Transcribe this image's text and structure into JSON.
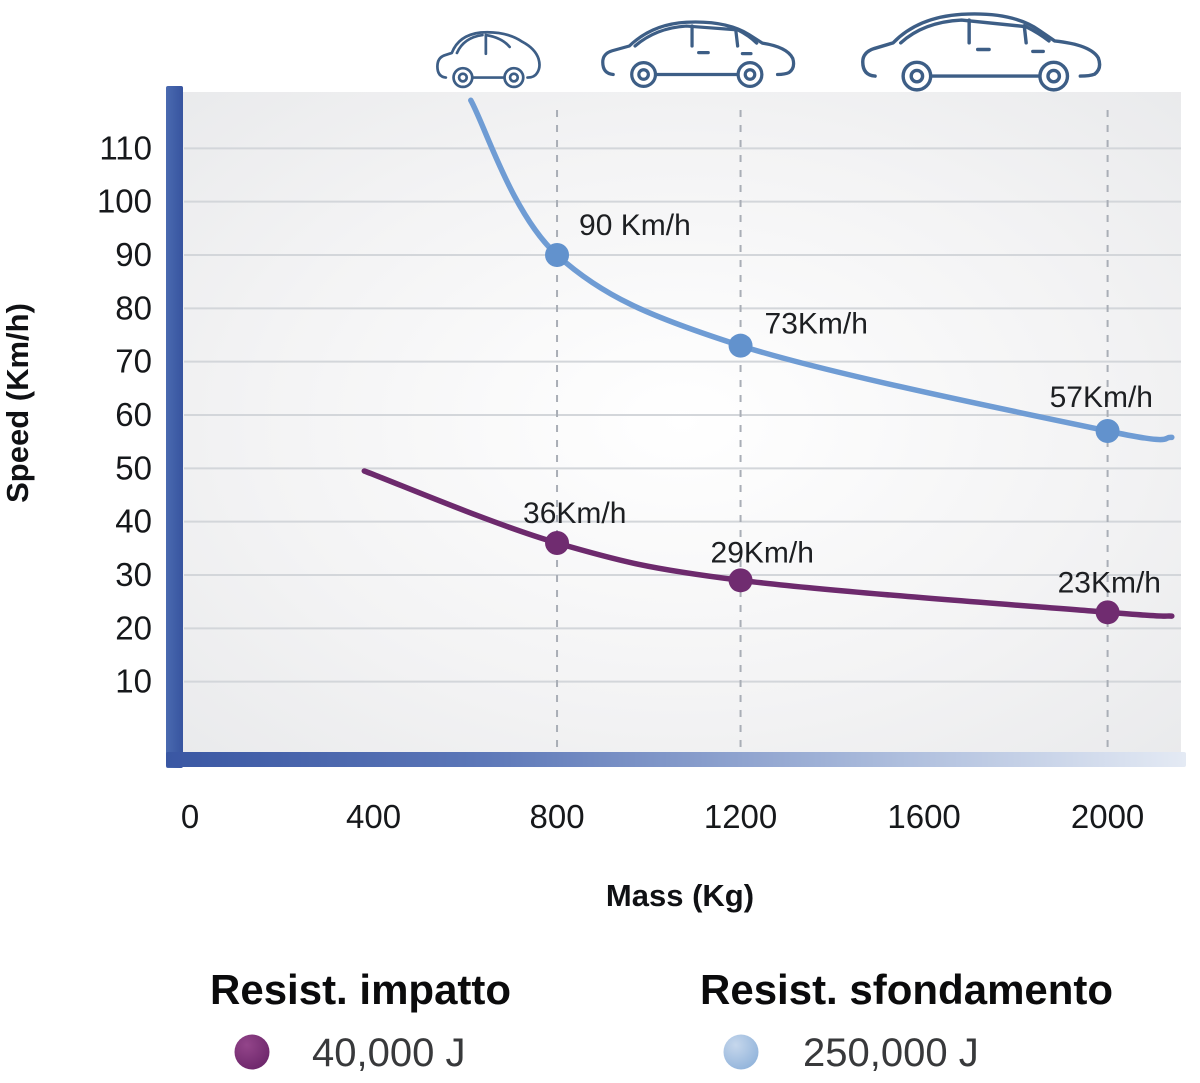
{
  "chart_data": {
    "type": "line",
    "title": "",
    "xlabel": "Mass (Kg)",
    "ylabel": "Speed (Km/h)",
    "x_ticks": [
      0,
      400,
      800,
      1200,
      1600,
      2000
    ],
    "y_ticks": [
      10,
      20,
      30,
      40,
      50,
      60,
      70,
      80,
      90,
      100,
      110
    ],
    "xlim": [
      0,
      2160
    ],
    "ylim": [
      0,
      120
    ],
    "grid": "horizontal",
    "legend_position": "bottom",
    "guide_masses": [
      800,
      1200,
      2000
    ],
    "series": [
      {
        "id": "impact",
        "name": "Resist. impatto",
        "energy_label": "40,000 J",
        "color": "#6d2a6d",
        "dot_color": "#702c70",
        "legend_dot_color": "#7b2e74",
        "points": [
          {
            "mass": 800,
            "speed": 36,
            "label": "36Km/h"
          },
          {
            "mass": 1200,
            "speed": 29,
            "label": "29Km/h"
          },
          {
            "mass": 2000,
            "speed": 23,
            "label": "23Km/h"
          }
        ],
        "curve": [
          [
            380,
            49.5
          ],
          [
            800,
            36
          ],
          [
            1200,
            29
          ],
          [
            2000,
            23
          ],
          [
            2140,
            22.3
          ]
        ]
      },
      {
        "id": "breakthrough",
        "name": "Resist. sfondamento",
        "energy_label": "250,000 J",
        "color": "#6f9cd4",
        "dot_color": "#6292cd",
        "legend_dot_color": "#a5c3e2",
        "points": [
          {
            "mass": 800,
            "speed": 90,
            "label": "90 Km/h"
          },
          {
            "mass": 1200,
            "speed": 73,
            "label": "73Km/h"
          },
          {
            "mass": 2000,
            "speed": 57,
            "label": "57Km/h"
          }
        ],
        "curve": [
          [
            612,
            119
          ],
          [
            800,
            90
          ],
          [
            1200,
            73
          ],
          [
            2000,
            57
          ],
          [
            2140,
            55.8
          ]
        ]
      }
    ],
    "icons": {
      "small_car": "city-car-icon",
      "medium_car": "hatchback-icon",
      "large_car": "suv-icon"
    },
    "colors": {
      "axis_bar_blue": "#3a57a3",
      "grid_line": "#d3d6da",
      "guide_line": "#a9aeb6",
      "car_outline": "#3d5e86",
      "plot_background": "#ececee"
    }
  }
}
